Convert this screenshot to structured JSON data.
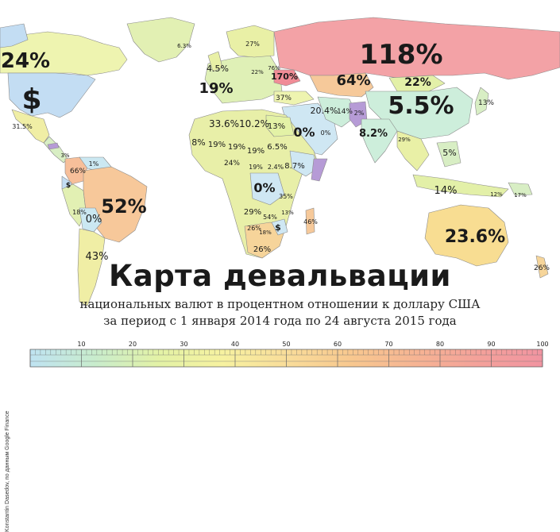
{
  "title": "Карта девальвации",
  "subtitle_line1": "национальных валют в процентном отношении к доллару США",
  "subtitle_line2": "за период с 1 января 2014 года по 24 августа 2015 года",
  "credit": "Konstantin Dasedov, по данным Google Finance",
  "scale": {
    "ticks": [
      "10",
      "20",
      "30",
      "40",
      "50",
      "60",
      "70",
      "80",
      "90",
      "100"
    ],
    "colors": [
      "#bfe3f2",
      "#c8eccd",
      "#e3f2a6",
      "#f7f2a0",
      "#f9dd9a",
      "#f8c88f",
      "#f6b493",
      "#f4a19a",
      "#f194a1"
    ]
  },
  "colors": {
    "ocean": "#ffffff",
    "usa": "#c3ddf3",
    "canada": "#eef4b0",
    "russia": "#f3a2a6",
    "australia": "#f8dd92",
    "brazil": "#f7c89a",
    "europe": "#dff0b6",
    "africa": "#e8efa8",
    "mideast": "#cfe7f3",
    "china": "#cdeedb",
    "purple": "#b69bd6",
    "border": "#8a8a8a"
  },
  "labels": {
    "canada": "24%",
    "usa": "$",
    "mexico": "31.5%",
    "russia": "118%",
    "ukraine": "170%",
    "kazakhstan": "64%",
    "mongolia": "22%",
    "china": "5.5%",
    "japan": "13%",
    "scandinavia": "19%",
    "sweden": "27%",
    "norway": "4.5%",
    "belarus": "76%",
    "europe_a": "22%",
    "europe_b": "37%",
    "turkey": "20.4%",
    "turkmen": "14%",
    "iran": "2%",
    "india": "8.2%",
    "algeria": "33.6%",
    "libya": "10.2%",
    "egypt": "13%",
    "saudi": "0%",
    "gulf": "0%",
    "west_africa": "8%",
    "mali": "19%",
    "niger": "19%",
    "chad": "19%",
    "sudan": "6.5%",
    "ethiopia": "8.7%",
    "nigeria": "24%",
    "cameroon": "19%",
    "car": "2.4%",
    "congo": "0%",
    "tanzania": "35%",
    "angola": "29%",
    "zambia": "54%",
    "mozambique": "13%",
    "namibia": "26%",
    "botswana": "18%",
    "south_africa": "26%",
    "south_africa_usd": "$",
    "madagascar": "46%",
    "colombia": "66%",
    "venezuela": "1%",
    "ecuador": "$",
    "peru": "18%",
    "bolivia": "0%",
    "brazil": "52%",
    "argentina": "43%",
    "indonesia": "14%",
    "malaysia": "5%",
    "thailand": "29%",
    "australia": "23.6%",
    "new_zealand": "26%",
    "greenland": "6.3%",
    "central_america": "3%",
    "pacific": "12%",
    "png": "17%"
  }
}
